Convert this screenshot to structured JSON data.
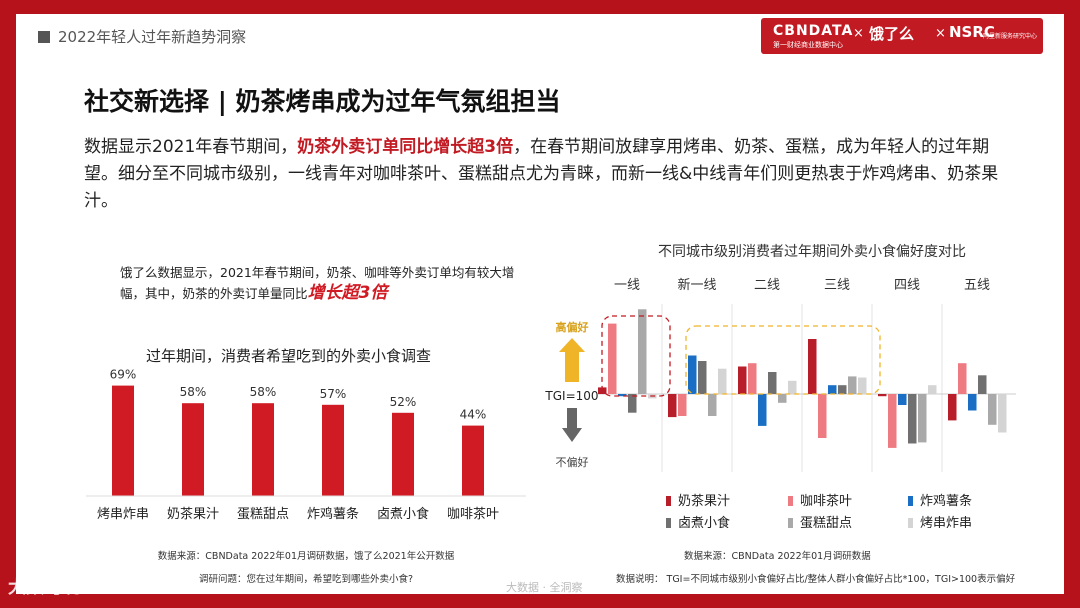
{
  "header": {
    "breadcrumb": "2022年轻人过年新趋势洞察",
    "logo_cbn": "CBNDATA",
    "logo_cbn_sub": "第一财经商业数据中心",
    "logo_eleme": "饿了么",
    "logo_nsrc": "NSRC",
    "logo_nsrc_sub": "阿里新服务研究中心",
    "logo_sep": "×"
  },
  "title": "社交新选择 | 奶茶烤串成为过年气氛组担当",
  "paragraph": {
    "part1": "数据显示2021年春节期间，",
    "highlight": "奶茶外卖订单同比增长超3倍",
    "part2": "，在春节期间放肆享用烤串、奶茶、蛋糕，成为年轻人的过年期望。细分至不同城市级别，一线青年对咖啡茶叶、蛋糕甜点尤为青睐，而新一线&中线青年们则更热衷于炸鸡烤串、奶茶果汁。"
  },
  "note": {
    "text": "饿了么数据显示，2021年春节期间，奶茶、咖啡等外卖订单均有较大增幅，其中，奶茶的外卖订单量同比",
    "emphasis": "增长超3倍"
  },
  "left_chart_title": "过年期间，消费者希望吃到的外卖小食调查",
  "right_chart_title": "不同城市级别消费者过年期间外卖小食偏好度对比",
  "sources": {
    "left_source": "数据来源：CBNData 2022年01月调研数据，饿了么2021年公开数据",
    "left_question": "调研问题：您在过年期间，希望吃到哪些外卖小食?",
    "right_source": "数据来源：CBNData 2022年01月调研数据",
    "right_note": "数据说明： TGI=不同城市级别小食偏好占比/整体人群小食偏好占比*100，TGI>100表示偏好"
  },
  "footer": "大数据 · 全洞察",
  "watermark": "大数跨境",
  "colors": {
    "brand_red": "#c21a22",
    "bar_red": "#d11b24"
  },
  "chart_data": [
    {
      "type": "bar",
      "categories": [
        "烤串炸串",
        "奶茶果汁",
        "蛋糕甜点",
        "炸鸡薯条",
        "卤煮小食",
        "咖啡茶叶"
      ],
      "values": [
        69,
        58,
        58,
        57,
        52,
        44
      ],
      "labels": [
        "69%",
        "58%",
        "58%",
        "57%",
        "52%",
        "44%"
      ],
      "unit": "%",
      "color": "#d11b24"
    },
    {
      "type": "bar",
      "categories": [
        "一线",
        "新一线",
        "二线",
        "三线",
        "四线",
        "五线"
      ],
      "baseline": "TGI=100",
      "up_label": "高偏好",
      "down_label": "不偏好",
      "series": [
        {
          "name": "奶茶果汁",
          "color": "#b81d2a",
          "values": [
            106,
            79,
            125,
            150,
            98,
            76
          ]
        },
        {
          "name": "咖啡茶叶",
          "color": "#ee7a82",
          "values": [
            164,
            80,
            128,
            60,
            51,
            128
          ]
        },
        {
          "name": "炸鸡薯条",
          "color": "#1a6fc4",
          "values": [
            98,
            135,
            71,
            108,
            90,
            85
          ]
        },
        {
          "name": "卤煮小食",
          "color": "#707070",
          "values": [
            83,
            130,
            120,
            108,
            55,
            117
          ]
        },
        {
          "name": "蛋糕甜点",
          "color": "#a9a9a9",
          "values": [
            177,
            80,
            92,
            116,
            56,
            72
          ]
        },
        {
          "name": "烤串炸串",
          "color": "#d4d4d4",
          "values": [
            96,
            123,
            112,
            115,
            108,
            65
          ]
        }
      ]
    }
  ]
}
